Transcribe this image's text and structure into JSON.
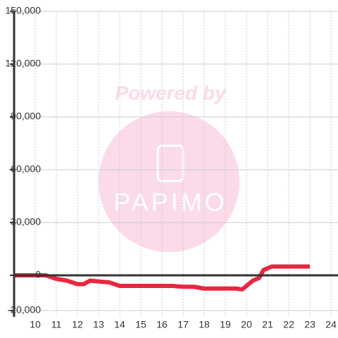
{
  "chart_data": {
    "type": "line",
    "x": [
      9,
      10,
      10.5,
      11,
      11.5,
      12,
      12.3,
      12.6,
      13,
      13.5,
      14,
      15,
      16,
      16.5,
      17,
      17.5,
      18,
      19,
      19.5,
      19.8,
      20,
      20.3,
      20.6,
      20.8,
      21.2,
      22,
      23
    ],
    "values": [
      0,
      0,
      0,
      -2000,
      -3000,
      -5000,
      -5000,
      -3000,
      -3500,
      -4000,
      -6000,
      -6000,
      -6000,
      -6000,
      -6500,
      -6500,
      -7500,
      -7500,
      -7500,
      -8000,
      -6000,
      -3000,
      -1500,
      3000,
      5000,
      5000,
      5000
    ],
    "color": "#e8273f",
    "xlim": [
      9,
      24.33
    ],
    "xticks": [
      10,
      11,
      12,
      13,
      14,
      15,
      16,
      17,
      18,
      19,
      20,
      21,
      22,
      23,
      24
    ],
    "ylim": [
      -20000,
      150000
    ],
    "yticks": [
      {
        "value": -20000,
        "label": "-20,000"
      },
      0,
      {
        "value": 30000,
        "label": "30,000"
      },
      {
        "value": 60000,
        "label": "60,000"
      },
      {
        "value": 90000,
        "label": "90,000"
      },
      {
        "value": 120000,
        "label": "120,000"
      },
      {
        "value": 150000,
        "label": "150,000"
      }
    ],
    "grid": true,
    "watermark": {
      "text": "Powered by",
      "logo": "PAPIMO"
    }
  }
}
